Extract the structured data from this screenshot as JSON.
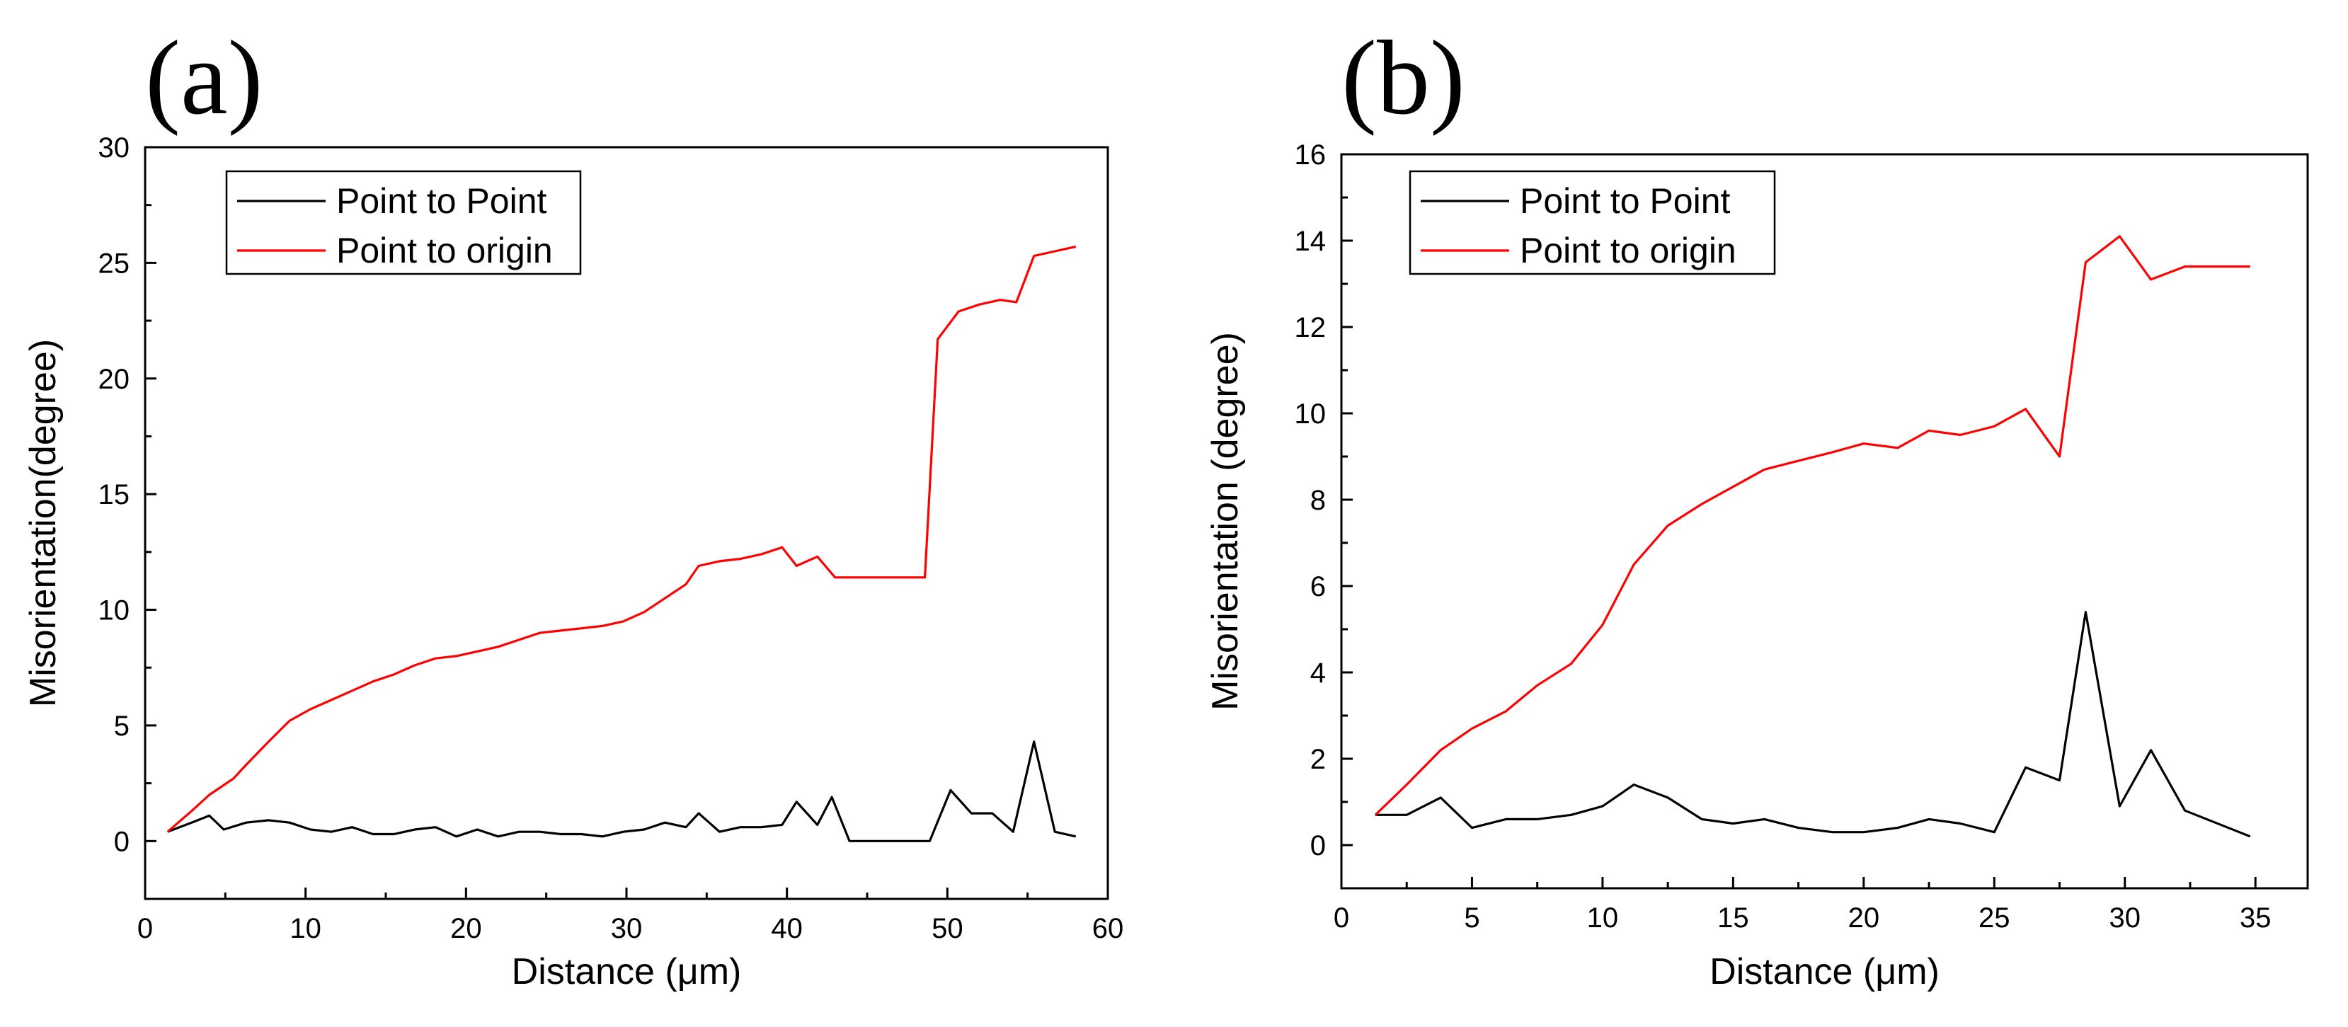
{
  "chart_data": [
    {
      "type": "line",
      "panel_label": "(a)",
      "title": "",
      "xlabel": "Distance (μm)",
      "ylabel": "Misorientation(degree)",
      "xlim": [
        0,
        60
      ],
      "ylim": [
        -2.5,
        30
      ],
      "xticks": [
        0,
        10,
        20,
        30,
        40,
        50,
        60
      ],
      "yticks": [
        0,
        5,
        10,
        15,
        20,
        25,
        30
      ],
      "legend_position": "top-left",
      "series": [
        {
          "name": "Point to Point",
          "color": "#000000",
          "x": [
            1.4,
            2.9,
            4.0,
            4.9,
            6.3,
            7.7,
            9.0,
            10.3,
            11.6,
            12.9,
            14.2,
            15.5,
            16.8,
            18.1,
            19.4,
            20.7,
            22.0,
            23.3,
            24.6,
            25.9,
            27.2,
            28.5,
            29.8,
            31.1,
            32.4,
            33.7,
            34.5,
            35.8,
            37.1,
            38.4,
            39.7,
            40.6,
            41.9,
            42.8,
            43.9,
            45.2,
            46.5,
            47.8,
            48.9,
            50.2,
            51.5,
            52.8,
            54.1,
            55.4,
            56.7,
            58.0
          ],
          "values": [
            0.4,
            0.8,
            1.1,
            0.5,
            0.8,
            0.9,
            0.8,
            0.5,
            0.4,
            0.6,
            0.3,
            0.3,
            0.5,
            0.6,
            0.2,
            0.5,
            0.2,
            0.4,
            0.4,
            0.3,
            0.3,
            0.2,
            0.4,
            0.5,
            0.8,
            0.6,
            1.2,
            0.4,
            0.6,
            0.6,
            0.7,
            1.7,
            0.7,
            1.9,
            0.0,
            0.0,
            0.0,
            0.0,
            0.0,
            2.2,
            1.2,
            1.2,
            0.4,
            4.3,
            0.4,
            0.2
          ]
        },
        {
          "name": "Point to origin",
          "color": "#ff0000",
          "x": [
            1.4,
            2.9,
            4.0,
            5.5,
            6.3,
            7.7,
            9.0,
            10.3,
            11.6,
            12.9,
            14.2,
            15.5,
            16.8,
            18.1,
            19.4,
            20.7,
            22.0,
            23.3,
            24.6,
            25.9,
            27.2,
            28.5,
            29.8,
            31.1,
            32.4,
            33.7,
            34.5,
            35.8,
            37.1,
            38.4,
            39.7,
            40.6,
            41.9,
            43.0,
            44.5,
            46.0,
            47.5,
            48.6,
            49.4,
            50.7,
            52.0,
            53.3,
            54.3,
            55.4,
            56.7,
            58.0
          ],
          "values": [
            0.4,
            1.3,
            2.0,
            2.7,
            3.3,
            4.3,
            5.2,
            5.7,
            6.1,
            6.5,
            6.9,
            7.2,
            7.6,
            7.9,
            8.0,
            8.2,
            8.4,
            8.7,
            9.0,
            9.1,
            9.2,
            9.3,
            9.5,
            9.9,
            10.5,
            11.1,
            11.9,
            12.1,
            12.2,
            12.4,
            12.7,
            11.9,
            12.3,
            11.4,
            11.4,
            11.4,
            11.4,
            11.4,
            21.7,
            22.9,
            23.2,
            23.4,
            23.3,
            25.3,
            25.5,
            25.7
          ]
        }
      ]
    },
    {
      "type": "line",
      "panel_label": "(b)",
      "title": "",
      "xlabel": "Distance (μm)",
      "ylabel": "Misorientation (degree)",
      "xlim": [
        0,
        37
      ],
      "ylim": [
        -1,
        16
      ],
      "xticks": [
        0,
        5,
        10,
        15,
        20,
        25,
        30,
        35
      ],
      "yticks": [
        0,
        2,
        4,
        6,
        8,
        10,
        12,
        14,
        16
      ],
      "legend_position": "top-left",
      "series": [
        {
          "name": "Point to Point",
          "color": "#000000",
          "x": [
            1.3,
            2.5,
            3.8,
            5.0,
            6.3,
            7.5,
            8.8,
            10.0,
            11.2,
            12.5,
            13.8,
            15.0,
            16.2,
            17.5,
            18.8,
            20.0,
            21.3,
            22.5,
            23.7,
            25.0,
            26.2,
            27.5,
            28.5,
            29.8,
            31.0,
            32.3,
            34.8
          ],
          "values": [
            0.7,
            0.7,
            1.1,
            0.4,
            0.6,
            0.6,
            0.7,
            0.9,
            1.4,
            1.1,
            0.6,
            0.5,
            0.6,
            0.4,
            0.3,
            0.3,
            0.4,
            0.6,
            0.5,
            0.3,
            1.8,
            1.5,
            5.4,
            0.9,
            2.2,
            0.8,
            0.2
          ]
        },
        {
          "name": "Point to origin",
          "color": "#ff0000",
          "x": [
            1.3,
            2.5,
            3.8,
            5.0,
            6.3,
            7.5,
            8.8,
            10.0,
            11.2,
            12.5,
            13.8,
            15.0,
            16.2,
            17.5,
            18.8,
            20.0,
            21.3,
            22.5,
            23.7,
            25.0,
            26.2,
            27.5,
            28.5,
            29.8,
            31.0,
            32.3,
            33.5,
            34.8
          ],
          "values": [
            0.7,
            1.4,
            2.2,
            2.7,
            3.1,
            3.7,
            4.2,
            5.1,
            6.5,
            7.4,
            7.9,
            8.3,
            8.7,
            8.9,
            9.1,
            9.3,
            9.2,
            9.6,
            9.5,
            9.7,
            10.1,
            9.0,
            13.5,
            14.1,
            13.1,
            13.4,
            13.4,
            13.4
          ]
        }
      ]
    }
  ]
}
